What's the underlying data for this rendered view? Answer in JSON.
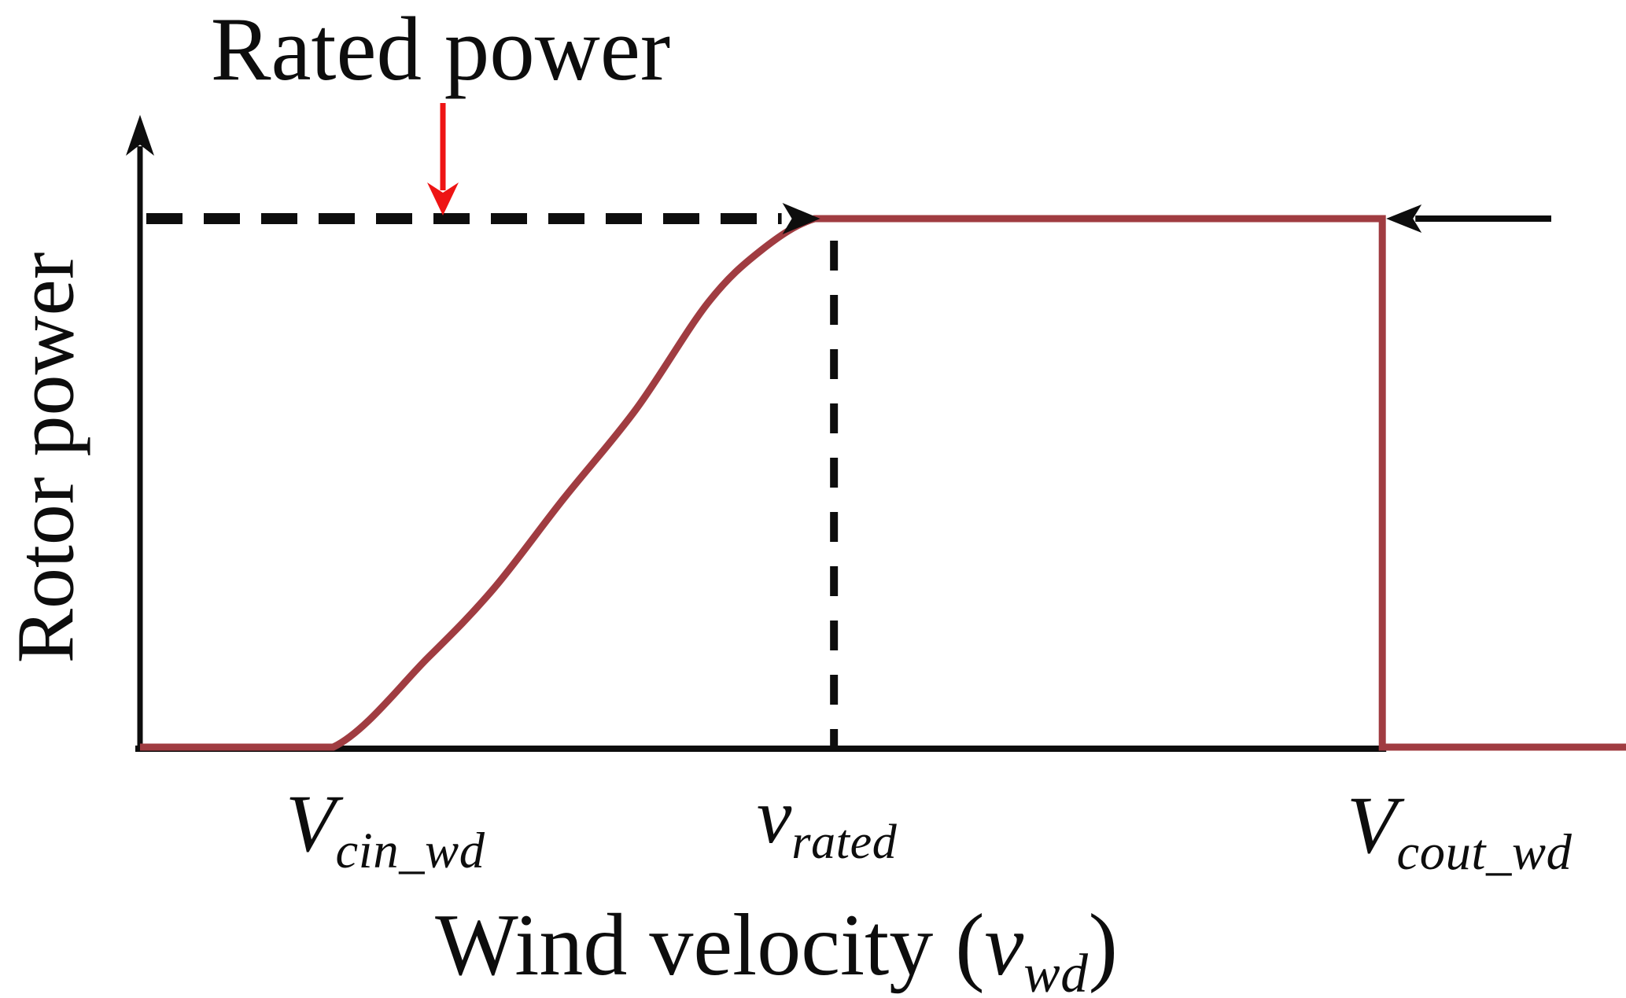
{
  "figure": {
    "annotation": {
      "label": "Rated power"
    },
    "y_axis_label": "Rotor power",
    "x_axis_label": {
      "prefix": "Wind velocity (",
      "symbol": "v",
      "subscript": "wd",
      "suffix": ")"
    },
    "x_ticks": [
      {
        "id": "cut-in",
        "symbol": "V",
        "subscript": "cin_wd"
      },
      {
        "id": "rated",
        "symbol": "v",
        "subscript": "rated"
      },
      {
        "id": "cut-out",
        "symbol": "V",
        "subscript": "cout_wd"
      }
    ],
    "colors": {
      "curve": "#a03c41",
      "axis": "#0d0d0d",
      "dashed_line": "#0d0d0d",
      "annotation_arrow": "#ee1414",
      "text": "#0d0d0d",
      "background": "#ffffff"
    }
  },
  "chart_data": {
    "type": "line",
    "title": "",
    "xlabel": "Wind velocity (v_wd)",
    "ylabel": "Rotor power",
    "x_axis": {
      "scale": "qualitative (no numeric ticks shown), normalized 0-1 of drawn axis",
      "ticks": [
        {
          "label": "V_cin_wd",
          "x": 0.13
        },
        {
          "label": "v_rated",
          "x": 0.467
        },
        {
          "label": "V_cout_wd",
          "x": 0.836
        }
      ]
    },
    "y_axis": {
      "scale": "fraction of rated power (no numeric ticks shown)",
      "range": [
        0,
        1.15
      ],
      "reference_lines": [
        {
          "label": "Rated power",
          "y": 1.0,
          "style": "dashed"
        }
      ]
    },
    "grid": false,
    "legend": false,
    "series": [
      {
        "name": "rotor-power-curve",
        "color": "#a03c41",
        "points": [
          [
            0,
            0
          ],
          [
            0.13,
            0
          ],
          [
            0.194,
            0.17
          ],
          [
            0.238,
            0.3
          ],
          [
            0.285,
            0.47
          ],
          [
            0.334,
            0.64
          ],
          [
            0.382,
            0.84
          ],
          [
            0.418,
            0.94
          ],
          [
            0.454,
            1
          ],
          [
            0.836,
            1
          ],
          [
            0.836,
            0
          ],
          [
            1,
            0
          ]
        ]
      }
    ],
    "annotations": [
      {
        "text": "Rated power",
        "target": "rated power level",
        "arrow": "red downward arrow"
      },
      {
        "type": "dashed-arrow",
        "from": "y-axis at rated power",
        "to": "curve plateau start near v_rated",
        "direction": "right"
      },
      {
        "type": "arrow",
        "from": "right side",
        "to": "V_cout_wd corner at rated power",
        "direction": "left"
      },
      {
        "type": "dashed-line",
        "at": "v_rated",
        "orientation": "vertical"
      }
    ]
  }
}
